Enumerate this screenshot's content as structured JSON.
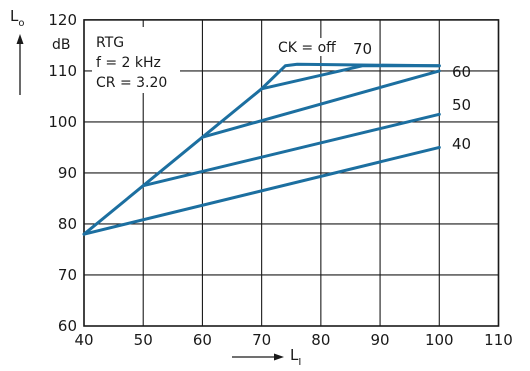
{
  "chart_data": {
    "type": "line",
    "ylabel_main": "L",
    "ylabel_sub": "o",
    "yunit": "dB",
    "xlabel_main": "L",
    "xlabel_sub": "I",
    "xlim": [
      40,
      110
    ],
    "ylim": [
      60,
      120
    ],
    "xticks": [
      40,
      50,
      60,
      70,
      80,
      90,
      100,
      110
    ],
    "yticks": [
      60,
      70,
      80,
      90,
      100,
      110,
      120
    ],
    "grid": true,
    "line_color": "#1c6fa0",
    "annotations": [
      "RTG",
      "f = 2 kHz",
      "CR = 3.20"
    ],
    "series": [
      {
        "name": "CK = off",
        "x": [
          40,
          50,
          60,
          70,
          74,
          76,
          100
        ],
        "y": [
          78,
          87.5,
          97,
          106.5,
          111,
          111.3,
          111
        ]
      },
      {
        "name": "70",
        "x": [
          70,
          87,
          100
        ],
        "y": [
          106.5,
          111,
          111
        ]
      },
      {
        "name": "60",
        "x": [
          60,
          100
        ],
        "y": [
          97,
          110
        ]
      },
      {
        "name": "50",
        "x": [
          50,
          100
        ],
        "y": [
          87.5,
          101.5
        ]
      },
      {
        "name": "40",
        "x": [
          40,
          100
        ],
        "y": [
          78,
          95
        ]
      }
    ]
  }
}
